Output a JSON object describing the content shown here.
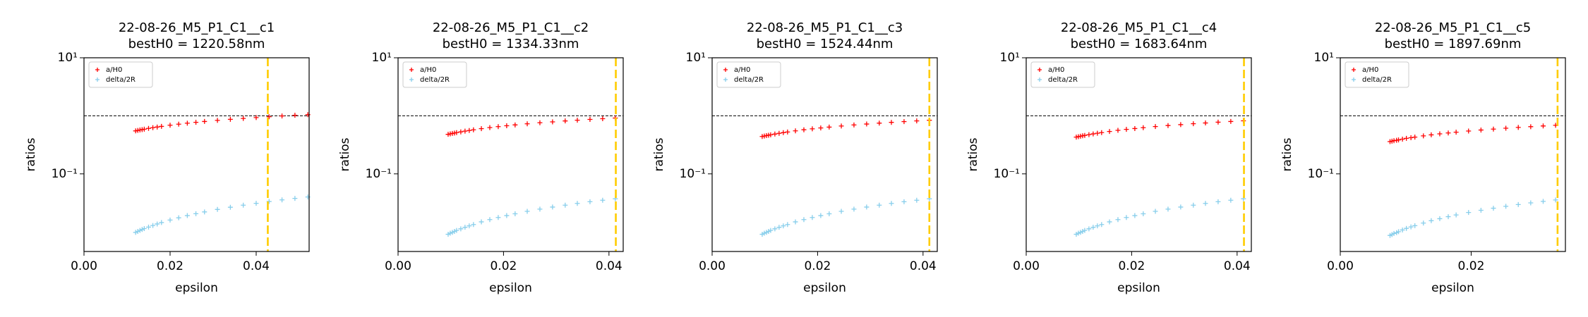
{
  "chart_data": [
    {
      "type": "scatter",
      "title": "22-08-26_M5_P1_C1__c1",
      "subtitle": "bestH0 = 1220.58nm",
      "xlabel": "epsilon",
      "ylabel": "ratios",
      "xlim": [
        0,
        0.0523
      ],
      "xticks": [
        {
          "value": 0,
          "label": "0.00"
        },
        {
          "value": 0.02,
          "label": "0.02"
        },
        {
          "value": 0.04,
          "label": "0.04"
        }
      ],
      "ylim": [
        0.0046,
        10
      ],
      "yticks": [
        {
          "value": 10,
          "label": "10¹"
        },
        {
          "value": 0.1,
          "label": "10⁻¹"
        }
      ],
      "log_y": true,
      "legend": "upper left",
      "hline": 1,
      "vline": 0.0427,
      "x": [
        0.012,
        0.0125,
        0.013,
        0.0135,
        0.014,
        0.015,
        0.016,
        0.017,
        0.018,
        0.02,
        0.022,
        0.024,
        0.026,
        0.028,
        0.031,
        0.034,
        0.037,
        0.04,
        0.043,
        0.046,
        0.049,
        0.052
      ],
      "series": [
        {
          "name": "a/H0",
          "color": "#ff0000",
          "values": [
            0.55,
            0.56,
            0.57,
            0.579,
            0.589,
            0.607,
            0.624,
            0.641,
            0.657,
            0.689,
            0.718,
            0.746,
            0.773,
            0.799,
            0.835,
            0.87,
            0.902,
            0.934,
            0.964,
            0.993,
            1.021,
            1.048
          ]
        },
        {
          "name": "delta/2R",
          "color": "#87ceeb",
          "values": [
            0.0098,
            0.0102,
            0.0106,
            0.011,
            0.0114,
            0.0121,
            0.0129,
            0.0137,
            0.0145,
            0.016,
            0.0175,
            0.0191,
            0.0206,
            0.0221,
            0.0244,
            0.0266,
            0.0289,
            0.0311,
            0.0334,
            0.0356,
            0.0378,
            0.04
          ]
        }
      ]
    },
    {
      "type": "scatter",
      "title": "22-08-26_M5_P1_C1__c2",
      "subtitle": "bestH0 = 1334.33nm",
      "xlabel": "epsilon",
      "ylabel": "ratios",
      "xlim": [
        0,
        0.0427
      ],
      "xticks": [
        {
          "value": 0,
          "label": "0.00"
        },
        {
          "value": 0.02,
          "label": "0.02"
        },
        {
          "value": 0.04,
          "label": "0.04"
        }
      ],
      "ylim": [
        0.0046,
        10
      ],
      "yticks": [
        {
          "value": 10,
          "label": "10¹"
        },
        {
          "value": 0.1,
          "label": "10⁻¹"
        }
      ],
      "log_y": true,
      "legend": "upper left",
      "hline": 1,
      "vline": 0.0413,
      "x": [
        0.0095,
        0.0099,
        0.0103,
        0.0107,
        0.0111,
        0.0119,
        0.0127,
        0.0135,
        0.0143,
        0.0158,
        0.0174,
        0.019,
        0.0206,
        0.0222,
        0.0245,
        0.0269,
        0.0293,
        0.0317,
        0.034,
        0.0364,
        0.0388,
        0.0412
      ],
      "series": [
        {
          "name": "a/H0",
          "color": "#ff0000",
          "values": [
            0.48,
            0.489,
            0.497,
            0.505,
            0.514,
            0.529,
            0.545,
            0.559,
            0.574,
            0.601,
            0.627,
            0.651,
            0.674,
            0.697,
            0.729,
            0.759,
            0.787,
            0.816,
            0.841,
            0.867,
            0.891,
            0.915
          ]
        },
        {
          "name": "delta/2R",
          "color": "#87ceeb",
          "values": [
            0.0091,
            0.0095,
            0.0098,
            0.0102,
            0.0106,
            0.0113,
            0.012,
            0.0127,
            0.0134,
            0.0149,
            0.0163,
            0.0177,
            0.0191,
            0.0205,
            0.0226,
            0.0247,
            0.0268,
            0.0289,
            0.031,
            0.0331,
            0.0351,
            0.0372
          ]
        }
      ]
    },
    {
      "type": "scatter",
      "title": "22-08-26_M5_P1_C1__c3",
      "subtitle": "bestH0 = 1524.44nm",
      "xlabel": "epsilon",
      "ylabel": "ratios",
      "xlim": [
        0,
        0.0427
      ],
      "xticks": [
        {
          "value": 0,
          "label": "0.00"
        },
        {
          "value": 0.02,
          "label": "0.02"
        },
        {
          "value": 0.04,
          "label": "0.04"
        }
      ],
      "ylim": [
        0.0046,
        10
      ],
      "yticks": [
        {
          "value": 10,
          "label": "10¹"
        },
        {
          "value": 0.1,
          "label": "10⁻¹"
        }
      ],
      "log_y": true,
      "legend": "upper left",
      "hline": 1,
      "vline": 0.0412,
      "x": [
        0.0095,
        0.0099,
        0.0103,
        0.0107,
        0.0111,
        0.0119,
        0.0127,
        0.0135,
        0.0143,
        0.0158,
        0.0174,
        0.019,
        0.0206,
        0.0222,
        0.0245,
        0.0269,
        0.0293,
        0.0317,
        0.034,
        0.0364,
        0.0388,
        0.0412
      ],
      "series": [
        {
          "name": "a/H0",
          "color": "#ff0000",
          "values": [
            0.44,
            0.448,
            0.456,
            0.463,
            0.471,
            0.485,
            0.499,
            0.513,
            0.526,
            0.551,
            0.575,
            0.597,
            0.618,
            0.639,
            0.668,
            0.696,
            0.722,
            0.748,
            0.771,
            0.795,
            0.817,
            0.839
          ]
        },
        {
          "name": "delta/2R",
          "color": "#87ceeb",
          "values": [
            0.0091,
            0.0095,
            0.0098,
            0.0102,
            0.0106,
            0.0113,
            0.012,
            0.0127,
            0.0134,
            0.0149,
            0.0163,
            0.0177,
            0.0191,
            0.0205,
            0.0226,
            0.0247,
            0.0268,
            0.0289,
            0.031,
            0.0331,
            0.0351,
            0.0372
          ]
        }
      ]
    },
    {
      "type": "scatter",
      "title": "22-08-26_M5_P1_C1__c4",
      "subtitle": "bestH0 = 1683.64nm",
      "xlabel": "epsilon",
      "ylabel": "ratios",
      "xlim": [
        0,
        0.0427
      ],
      "xticks": [
        {
          "value": 0,
          "label": "0.00"
        },
        {
          "value": 0.02,
          "label": "0.02"
        },
        {
          "value": 0.04,
          "label": "0.04"
        }
      ],
      "ylim": [
        0.0046,
        10
      ],
      "yticks": [
        {
          "value": 10,
          "label": "10¹"
        },
        {
          "value": 0.1,
          "label": "10⁻¹"
        }
      ],
      "log_y": true,
      "legend": "upper left",
      "hline": 1,
      "vline": 0.0413,
      "x": [
        0.0095,
        0.0099,
        0.0103,
        0.0107,
        0.0111,
        0.0119,
        0.0127,
        0.0135,
        0.0143,
        0.0158,
        0.0174,
        0.019,
        0.0206,
        0.0222,
        0.0245,
        0.0269,
        0.0293,
        0.0317,
        0.034,
        0.0364,
        0.0388,
        0.0412
      ],
      "series": [
        {
          "name": "a/H0",
          "color": "#ff0000",
          "values": [
            0.43,
            0.438,
            0.445,
            0.453,
            0.46,
            0.474,
            0.488,
            0.501,
            0.514,
            0.538,
            0.562,
            0.584,
            0.604,
            0.624,
            0.653,
            0.68,
            0.705,
            0.731,
            0.753,
            0.777,
            0.799,
            0.82
          ]
        },
        {
          "name": "delta/2R",
          "color": "#87ceeb",
          "values": [
            0.0091,
            0.0095,
            0.0098,
            0.0102,
            0.0106,
            0.0113,
            0.012,
            0.0127,
            0.0134,
            0.0149,
            0.0163,
            0.0177,
            0.0191,
            0.0205,
            0.0226,
            0.0247,
            0.0268,
            0.0289,
            0.031,
            0.0331,
            0.0351,
            0.0372
          ]
        }
      ]
    },
    {
      "type": "scatter",
      "title": "22-08-26_M5_P1_C1__c5",
      "subtitle": "bestH0 = 1897.69nm",
      "xlabel": "epsilon",
      "ylabel": "ratios",
      "xlim": [
        0,
        0.0344
      ],
      "xticks": [
        {
          "value": 0,
          "label": "0.00"
        },
        {
          "value": 0.02,
          "label": "0.02"
        }
      ],
      "ylim": [
        0.0046,
        10
      ],
      "yticks": [
        {
          "value": 10,
          "label": "10¹"
        },
        {
          "value": 0.1,
          "label": "10⁻¹"
        }
      ],
      "log_y": true,
      "legend": "upper left",
      "hline": 1,
      "vline": 0.0332,
      "x": [
        0.0076,
        0.0079,
        0.0082,
        0.0086,
        0.0089,
        0.0095,
        0.0101,
        0.0108,
        0.0114,
        0.0127,
        0.0139,
        0.0152,
        0.0165,
        0.0177,
        0.0196,
        0.0215,
        0.0234,
        0.0253,
        0.0272,
        0.0291,
        0.031,
        0.0329
      ],
      "series": [
        {
          "name": "a/H0",
          "color": "#ff0000",
          "values": [
            0.36,
            0.366,
            0.373,
            0.379,
            0.385,
            0.397,
            0.409,
            0.419,
            0.43,
            0.451,
            0.47,
            0.489,
            0.506,
            0.523,
            0.547,
            0.569,
            0.59,
            0.612,
            0.631,
            0.65,
            0.669,
            0.686
          ]
        },
        {
          "name": "delta/2R",
          "color": "#87ceeb",
          "values": [
            0.0087,
            0.009,
            0.0094,
            0.0097,
            0.0101,
            0.0108,
            0.0115,
            0.0122,
            0.0128,
            0.0142,
            0.0156,
            0.0169,
            0.0183,
            0.0196,
            0.0216,
            0.0236,
            0.0256,
            0.0276,
            0.0296,
            0.0316,
            0.0336,
            0.0355
          ]
        }
      ]
    }
  ]
}
